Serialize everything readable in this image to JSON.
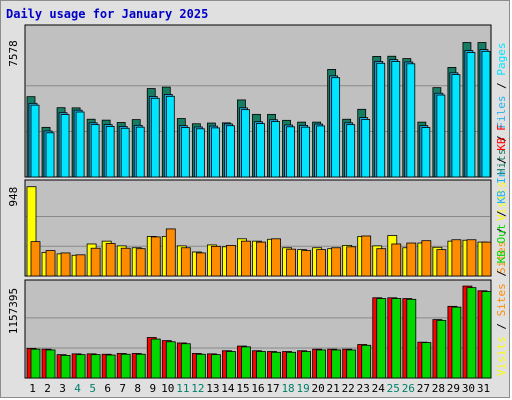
{
  "title": "Daily usage for January 2025",
  "colors": {
    "hits": "#167d63",
    "files": "#22b2f2",
    "pages": "#00e5ff",
    "visits": "#ffff00",
    "sites": "#ff8c00",
    "kbin": "#00d800",
    "kbout": "#ff0000",
    "plot_bg": "#c0c0c0",
    "weekend": "#00806a"
  },
  "chart_data": [
    {
      "type": "bar",
      "panel": "pages-files-hits",
      "max_label": "7578",
      "legend": [
        {
          "text": "Pages",
          "color": "#00e5ff"
        },
        {
          "text": "Files",
          "color": "#22b2f2"
        },
        {
          "text": "Hits",
          "color": "#167d63"
        }
      ],
      "categories": [
        "1",
        "2",
        "3",
        "4",
        "5",
        "6",
        "7",
        "8",
        "9",
        "10",
        "11",
        "12",
        "13",
        "14",
        "15",
        "16",
        "17",
        "18",
        "19",
        "20",
        "21",
        "22",
        "23",
        "24",
        "25",
        "26",
        "27",
        "28",
        "29",
        "30",
        "31"
      ],
      "ylim": [
        0,
        7578
      ],
      "series": [
        {
          "name": "Hits",
          "values": [
            4450,
            2750,
            3840,
            3830,
            3200,
            3150,
            3020,
            3180,
            4900,
            4980,
            3240,
            2950,
            2990,
            3000,
            4270,
            3470,
            3470,
            3140,
            3040,
            3040,
            5960,
            3200,
            3750,
            6680,
            6690,
            6560,
            3040,
            4950,
            6070,
            7450,
            7450
          ]
        },
        {
          "name": "Files",
          "values": [
            4080,
            2550,
            3560,
            3700,
            3000,
            2900,
            2800,
            2860,
            4460,
            4570,
            2840,
            2770,
            2820,
            2940,
            3830,
            3060,
            3170,
            2880,
            2860,
            2930,
            5600,
            3000,
            3290,
            6400,
            6500,
            6370,
            2840,
            4640,
            5770,
            7000,
            7060
          ]
        },
        {
          "name": "Pages",
          "values": [
            3980,
            2450,
            3460,
            3600,
            2900,
            2800,
            2700,
            2760,
            4360,
            4470,
            2740,
            2670,
            2720,
            2840,
            3730,
            2960,
            3070,
            2780,
            2760,
            2830,
            5500,
            2900,
            3190,
            6300,
            6400,
            6270,
            2740,
            4540,
            5670,
            6900,
            6960
          ]
        }
      ]
    },
    {
      "type": "bar",
      "panel": "visits-sites",
      "max_label": "948",
      "legend": [
        {
          "text": "Visits",
          "color": "#ffff00"
        },
        {
          "text": "Sites",
          "color": "#ff8c00"
        }
      ],
      "categories": [
        "1",
        "2",
        "3",
        "4",
        "5",
        "6",
        "7",
        "8",
        "9",
        "10",
        "11",
        "12",
        "13",
        "14",
        "15",
        "16",
        "17",
        "18",
        "19",
        "20",
        "21",
        "22",
        "23",
        "24",
        "25",
        "26",
        "27",
        "28",
        "29",
        "30",
        "31"
      ],
      "ylim": [
        0,
        948
      ],
      "series": [
        {
          "name": "Visits",
          "values": [
            948,
            250,
            235,
            220,
            340,
            370,
            320,
            300,
            420,
            420,
            320,
            255,
            330,
            310,
            395,
            370,
            390,
            300,
            280,
            300,
            290,
            325,
            420,
            320,
            430,
            300,
            350,
            305,
            370,
            380,
            360
          ]
        },
        {
          "name": "Sites",
          "values": [
            365,
            270,
            245,
            225,
            295,
            345,
            295,
            290,
            415,
            500,
            300,
            245,
            315,
            325,
            370,
            360,
            395,
            285,
            270,
            280,
            300,
            310,
            425,
            290,
            340,
            350,
            375,
            280,
            385,
            385,
            360
          ]
        }
      ]
    },
    {
      "type": "bar",
      "panel": "kbin-kbout",
      "max_label": "1157395",
      "legend": [
        {
          "text": "KB F",
          "color": "#ff0000"
        },
        {
          "text": "KB In",
          "color": "#22b2f2"
        },
        {
          "text": "KB Out",
          "color": "#00d800"
        },
        {
          "text": "Sites",
          "color": "#ff8c00"
        },
        {
          "text": "Visits",
          "color": "#ffff00"
        }
      ],
      "categories": [
        "1",
        "2",
        "3",
        "4",
        "5",
        "6",
        "7",
        "8",
        "9",
        "10",
        "11",
        "12",
        "13",
        "14",
        "15",
        "16",
        "17",
        "18",
        "19",
        "20",
        "21",
        "22",
        "23",
        "24",
        "25",
        "26",
        "27",
        "28",
        "29",
        "30",
        "31"
      ],
      "ylim": [
        0,
        1157395
      ],
      "series": [
        {
          "name": "KB F",
          "values": [
            380000,
            370000,
            300000,
            310000,
            310000,
            305000,
            315000,
            315000,
            520000,
            480000,
            450000,
            315000,
            310000,
            350000,
            410000,
            350000,
            340000,
            340000,
            350000,
            370000,
            370000,
            370000,
            430000,
            1030000,
            1030000,
            1020000,
            460000,
            750000,
            920000,
            1180000,
            1120000
          ]
        },
        {
          "name": "KB Out",
          "values": [
            370000,
            360000,
            290000,
            300000,
            300000,
            295000,
            305000,
            305000,
            500000,
            465000,
            440000,
            305000,
            300000,
            340000,
            400000,
            340000,
            330000,
            330000,
            340000,
            360000,
            360000,
            360000,
            420000,
            1020000,
            1020000,
            1010000,
            455000,
            740000,
            910000,
            1160000,
            1110000
          ]
        }
      ]
    }
  ],
  "x_labels": [
    "1",
    "2",
    "3",
    "4",
    "5",
    "6",
    "7",
    "8",
    "9",
    "10",
    "11",
    "12",
    "13",
    "14",
    "15",
    "16",
    "17",
    "18",
    "19",
    "20",
    "21",
    "22",
    "23",
    "24",
    "25",
    "26",
    "27",
    "28",
    "29",
    "30",
    "31"
  ],
  "weekend_days": [
    "4",
    "5",
    "11",
    "12",
    "18",
    "19",
    "25",
    "26"
  ]
}
